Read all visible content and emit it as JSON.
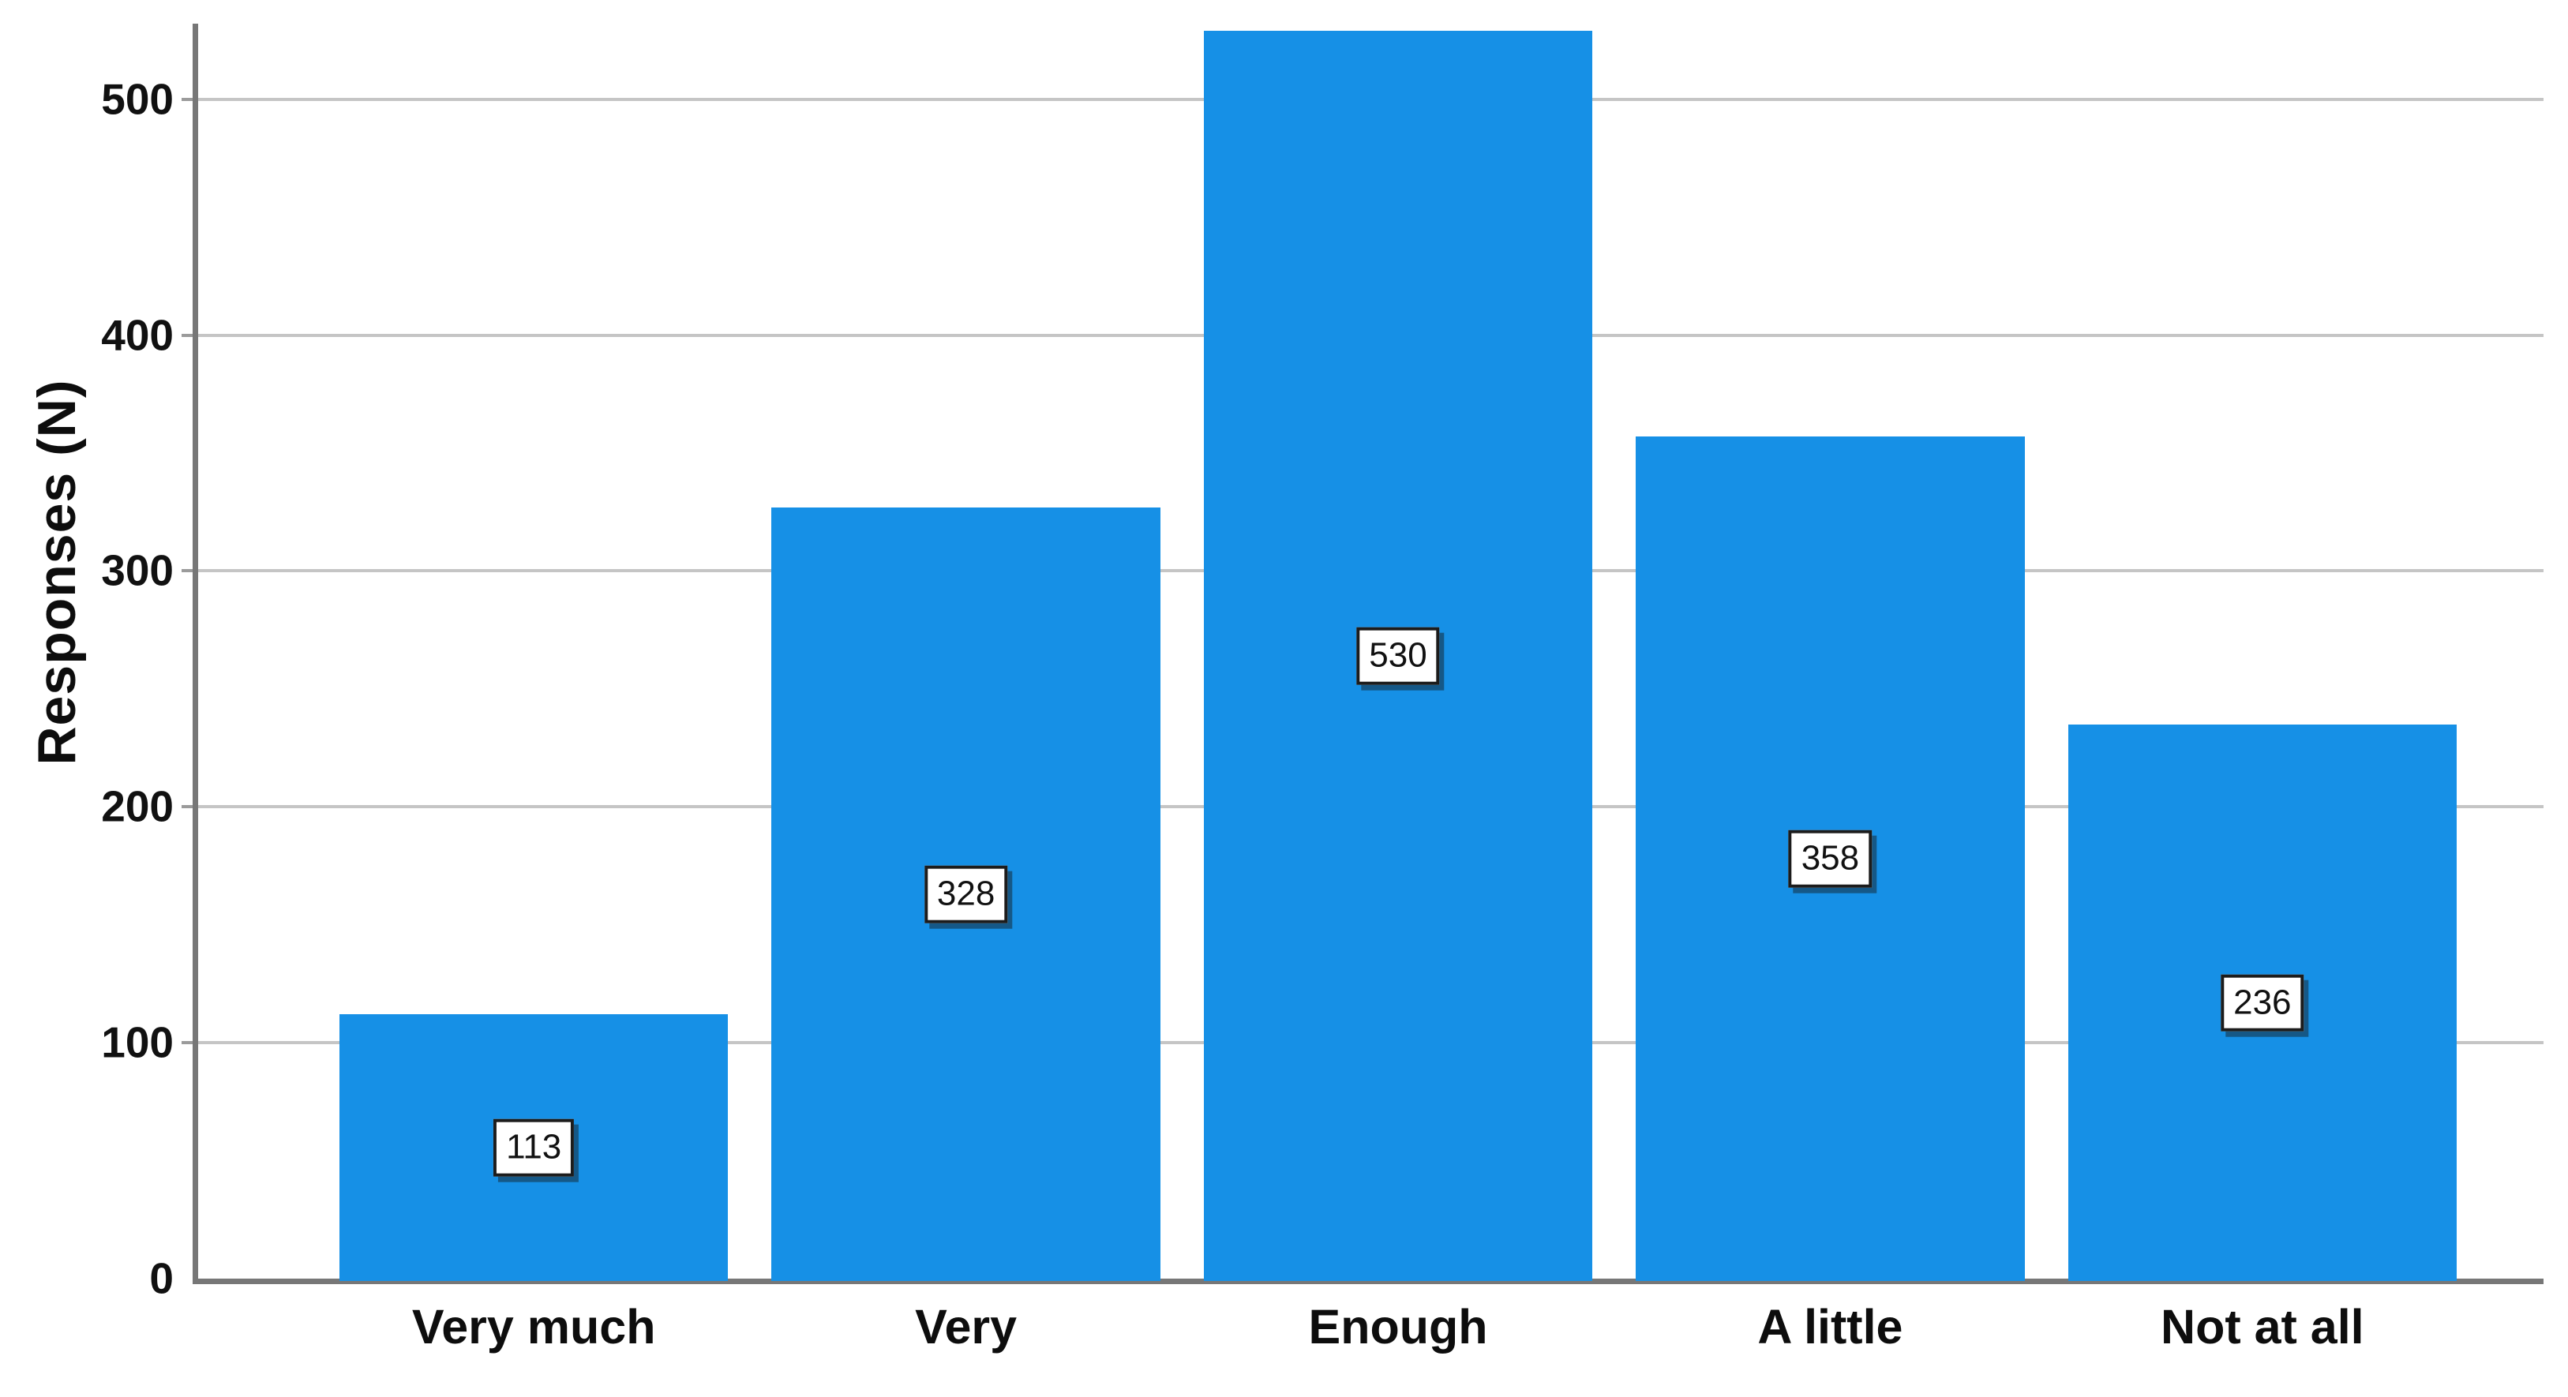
{
  "chart_data": {
    "type": "bar",
    "title": "",
    "xlabel": "",
    "ylabel": "Responses (N)",
    "categories": [
      "Very much",
      "Very",
      "Enough",
      "A little",
      "Not at all"
    ],
    "values": [
      113,
      328,
      530,
      358,
      236
    ],
    "value_labels": [
      "113",
      "328",
      "530",
      "358",
      "236"
    ],
    "yticks": [
      0,
      100,
      200,
      300,
      400,
      500
    ],
    "ylim": [
      0,
      532
    ],
    "grid": true,
    "legend_position": "none",
    "colors": {
      "bar": "#1690e6",
      "gridline": "#c5c5c5",
      "axis": "#777777",
      "axis_tick": "#9b9b9b",
      "text": "#111111",
      "value_box_background": "#ffffff",
      "value_box_border": "#1c1c1c"
    }
  }
}
